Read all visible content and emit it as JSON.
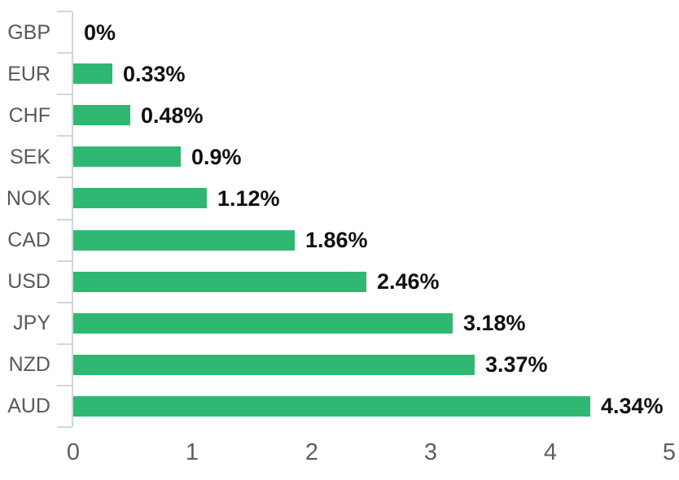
{
  "chart_data": {
    "type": "bar",
    "orientation": "horizontal",
    "title": "",
    "categories": [
      "GBP",
      "EUR",
      "CHF",
      "SEK",
      "NOK",
      "CAD",
      "USD",
      "JPY",
      "NZD",
      "AUD"
    ],
    "values": [
      0,
      0.33,
      0.48,
      0.9,
      1.12,
      1.86,
      2.46,
      3.18,
      3.37,
      4.34
    ],
    "value_labels": [
      "0%",
      "0.33%",
      "0.48%",
      "0.9%",
      "1.12%",
      "1.86%",
      "2.46%",
      "3.18%",
      "3.37%",
      "4.34%"
    ],
    "x_tick_labels": [
      "0",
      "1",
      "2",
      "3",
      "4",
      "5"
    ],
    "xlim": [
      0,
      5
    ],
    "grid": false,
    "legend": "none",
    "colors": {
      "bar": "#2eb872",
      "axis_line": "#d2d5d7",
      "category_label": "#595959",
      "axis_tick_label": "#5c6064",
      "value_label": "#111111",
      "background": "#ffffff"
    }
  }
}
